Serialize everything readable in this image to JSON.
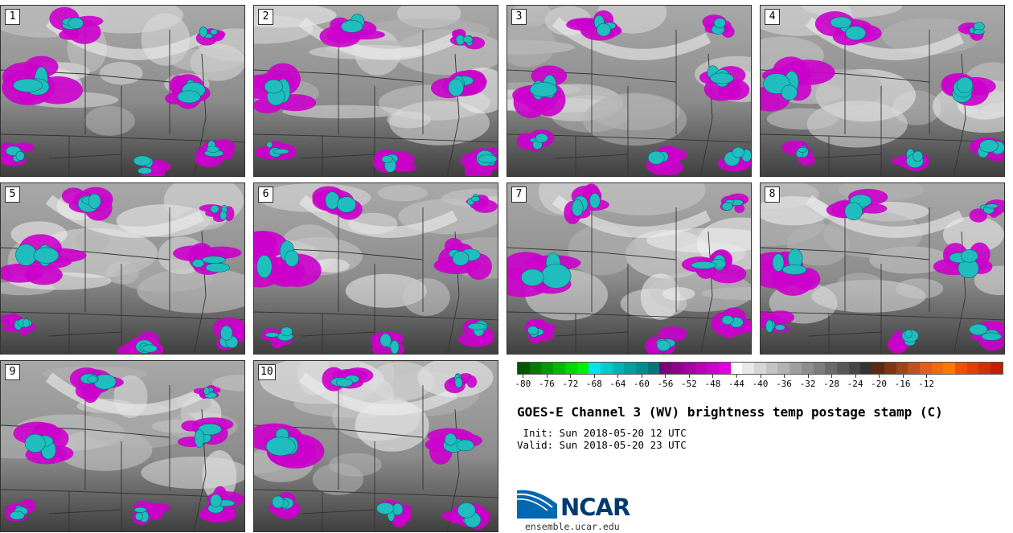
{
  "panels": [
    {
      "label": "1"
    },
    {
      "label": "2"
    },
    {
      "label": "3"
    },
    {
      "label": "4"
    },
    {
      "label": "5"
    },
    {
      "label": "6"
    },
    {
      "label": "7"
    },
    {
      "label": "8"
    },
    {
      "label": "9"
    },
    {
      "label": "10"
    }
  ],
  "legend": {
    "colors": [
      "#005500",
      "#007a00",
      "#009900",
      "#00b800",
      "#00d700",
      "#00f000",
      "#00e5e5",
      "#00cccc",
      "#00b3b3",
      "#009e9e",
      "#008c8c",
      "#007777",
      "#7a007a",
      "#8f008f",
      "#a400a4",
      "#b800b8",
      "#cc00cc",
      "#e000e0",
      "#ffffff",
      "#e9e9e9",
      "#d6d6d6",
      "#c4c4c4",
      "#b2b2b2",
      "#a0a0a0",
      "#8e8e8e",
      "#7c7c7c",
      "#6a6a6a",
      "#585858",
      "#464646",
      "#343434",
      "#5c2a10",
      "#7d3615",
      "#9e431a",
      "#c0501f",
      "#e05e1e",
      "#f06a10",
      "#ff7a00",
      "#f05000",
      "#e04000",
      "#d03000",
      "#c02000"
    ],
    "tick_labels": [
      "-80",
      "-76",
      "-72",
      "-68",
      "-64",
      "-60",
      "-56",
      "-52",
      "-48",
      "-44",
      "-40",
      "-36",
      "-32",
      "-28",
      "-24",
      "-20",
      "-16",
      "-12"
    ]
  },
  "title": "GOES-E Channel 3 (WV) brightness temp postage stamp (C)",
  "init": " Init: Sun 2018-05-20 12 UTC",
  "valid": "Valid: Sun 2018-05-20 23 UTC",
  "logo": {
    "wordmark": "NCAR",
    "colors": {
      "swoosh": "#0067b1",
      "text": "#003a70"
    }
  },
  "site": "ensemble.ucar.edu"
}
